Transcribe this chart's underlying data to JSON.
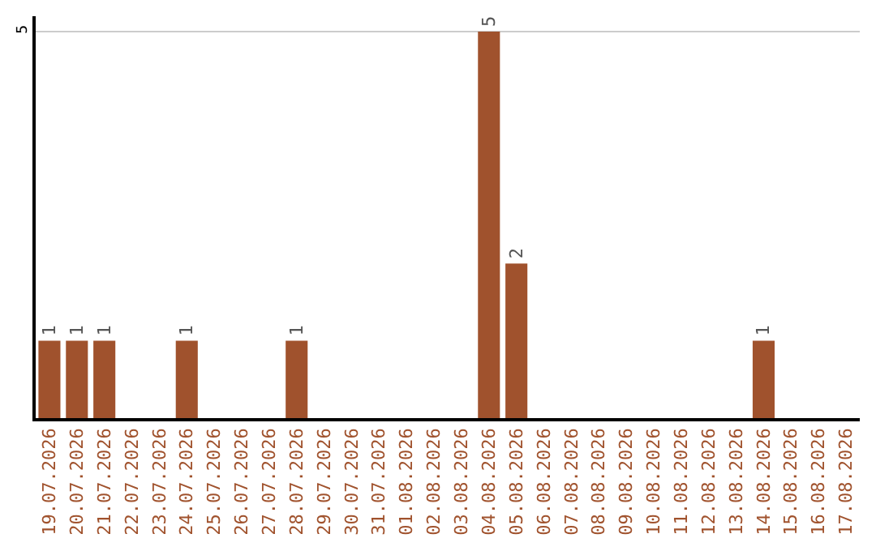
{
  "chart_data": {
    "type": "bar",
    "categories": [
      "19.07.2026",
      "20.07.2026",
      "21.07.2026",
      "22.07.2026",
      "23.07.2026",
      "24.07.2026",
      "25.07.2026",
      "26.07.2026",
      "27.07.2026",
      "28.07.2026",
      "29.07.2026",
      "30.07.2026",
      "31.07.2026",
      "01.08.2026",
      "02.08.2026",
      "03.08.2026",
      "04.08.2026",
      "05.08.2026",
      "06.08.2026",
      "07.08.2026",
      "08.08.2026",
      "09.08.2026",
      "10.08.2026",
      "11.08.2026",
      "12.08.2026",
      "13.08.2026",
      "14.08.2026",
      "15.08.2026",
      "16.08.2026",
      "17.08.2026"
    ],
    "values": [
      1,
      1,
      1,
      0,
      0,
      1,
      0,
      0,
      0,
      1,
      0,
      0,
      0,
      0,
      0,
      0,
      5,
      2,
      0,
      0,
      0,
      0,
      0,
      0,
      0,
      0,
      1,
      0,
      0,
      0
    ],
    "value_labels": [
      "1",
      "1",
      "1",
      null,
      null,
      "1",
      null,
      null,
      null,
      "1",
      null,
      null,
      null,
      null,
      null,
      null,
      "5",
      "2",
      null,
      null,
      null,
      null,
      null,
      null,
      null,
      null,
      "1",
      null,
      null,
      null
    ],
    "color": "#a0522d",
    "ylim": [
      0,
      5.2
    ],
    "yticks": [
      5
    ],
    "grid": "y",
    "legend": false
  }
}
